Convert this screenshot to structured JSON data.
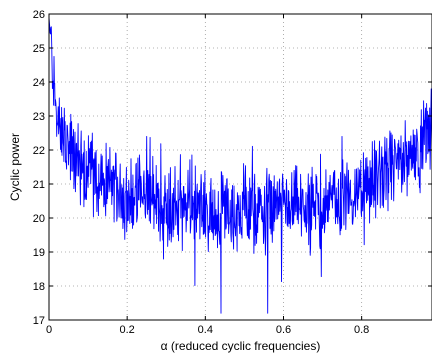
{
  "chart_data": {
    "type": "line",
    "title": "",
    "xlabel": "α (reduced cyclic frequencies)",
    "ylabel": "Cyclic power",
    "xlim": [
      0,
      0.98
    ],
    "ylim": [
      17,
      26
    ],
    "x_ticks": [
      0,
      0.2,
      0.4,
      0.6,
      0.8
    ],
    "x_tick_labels": [
      "0",
      "0.2",
      "0.4",
      "0.6",
      "0.8"
    ],
    "y_ticks": [
      17,
      18,
      19,
      20,
      21,
      22,
      23,
      24,
      25,
      26
    ],
    "y_tick_labels": [
      "17",
      "18",
      "19",
      "20",
      "21",
      "22",
      "23",
      "24",
      "25",
      "26"
    ],
    "grid": true,
    "series_color": "#0000ff",
    "series": [
      {
        "x": [
          0.0,
          0.02,
          0.04,
          0.06,
          0.08,
          0.1,
          0.12,
          0.14,
          0.16,
          0.18,
          0.2,
          0.22,
          0.24,
          0.26,
          0.28,
          0.3,
          0.32,
          0.34,
          0.36,
          0.38,
          0.4,
          0.42,
          0.44,
          0.46,
          0.48,
          0.5,
          0.52,
          0.54,
          0.56,
          0.58,
          0.6,
          0.62,
          0.64,
          0.66,
          0.68,
          0.7,
          0.72,
          0.74,
          0.76,
          0.78,
          0.8,
          0.82,
          0.84,
          0.86,
          0.88,
          0.9,
          0.92,
          0.94,
          0.96,
          0.98
        ],
        "values": [
          25.9,
          22.8,
          22.2,
          21.8,
          21.6,
          21.4,
          21.2,
          21.0,
          21.0,
          20.8,
          20.6,
          20.7,
          20.6,
          20.7,
          20.4,
          20.3,
          20.5,
          20.2,
          20.3,
          20.4,
          20.2,
          20.0,
          20.3,
          20.1,
          20.2,
          20.5,
          20.2,
          20.1,
          20.3,
          20.2,
          20.2,
          20.3,
          20.4,
          20.2,
          20.4,
          20.3,
          20.6,
          20.6,
          20.7,
          20.7,
          20.8,
          21.0,
          21.1,
          21.3,
          21.5,
          21.6,
          21.8,
          22.0,
          22.4,
          22.7
        ]
      }
    ]
  }
}
